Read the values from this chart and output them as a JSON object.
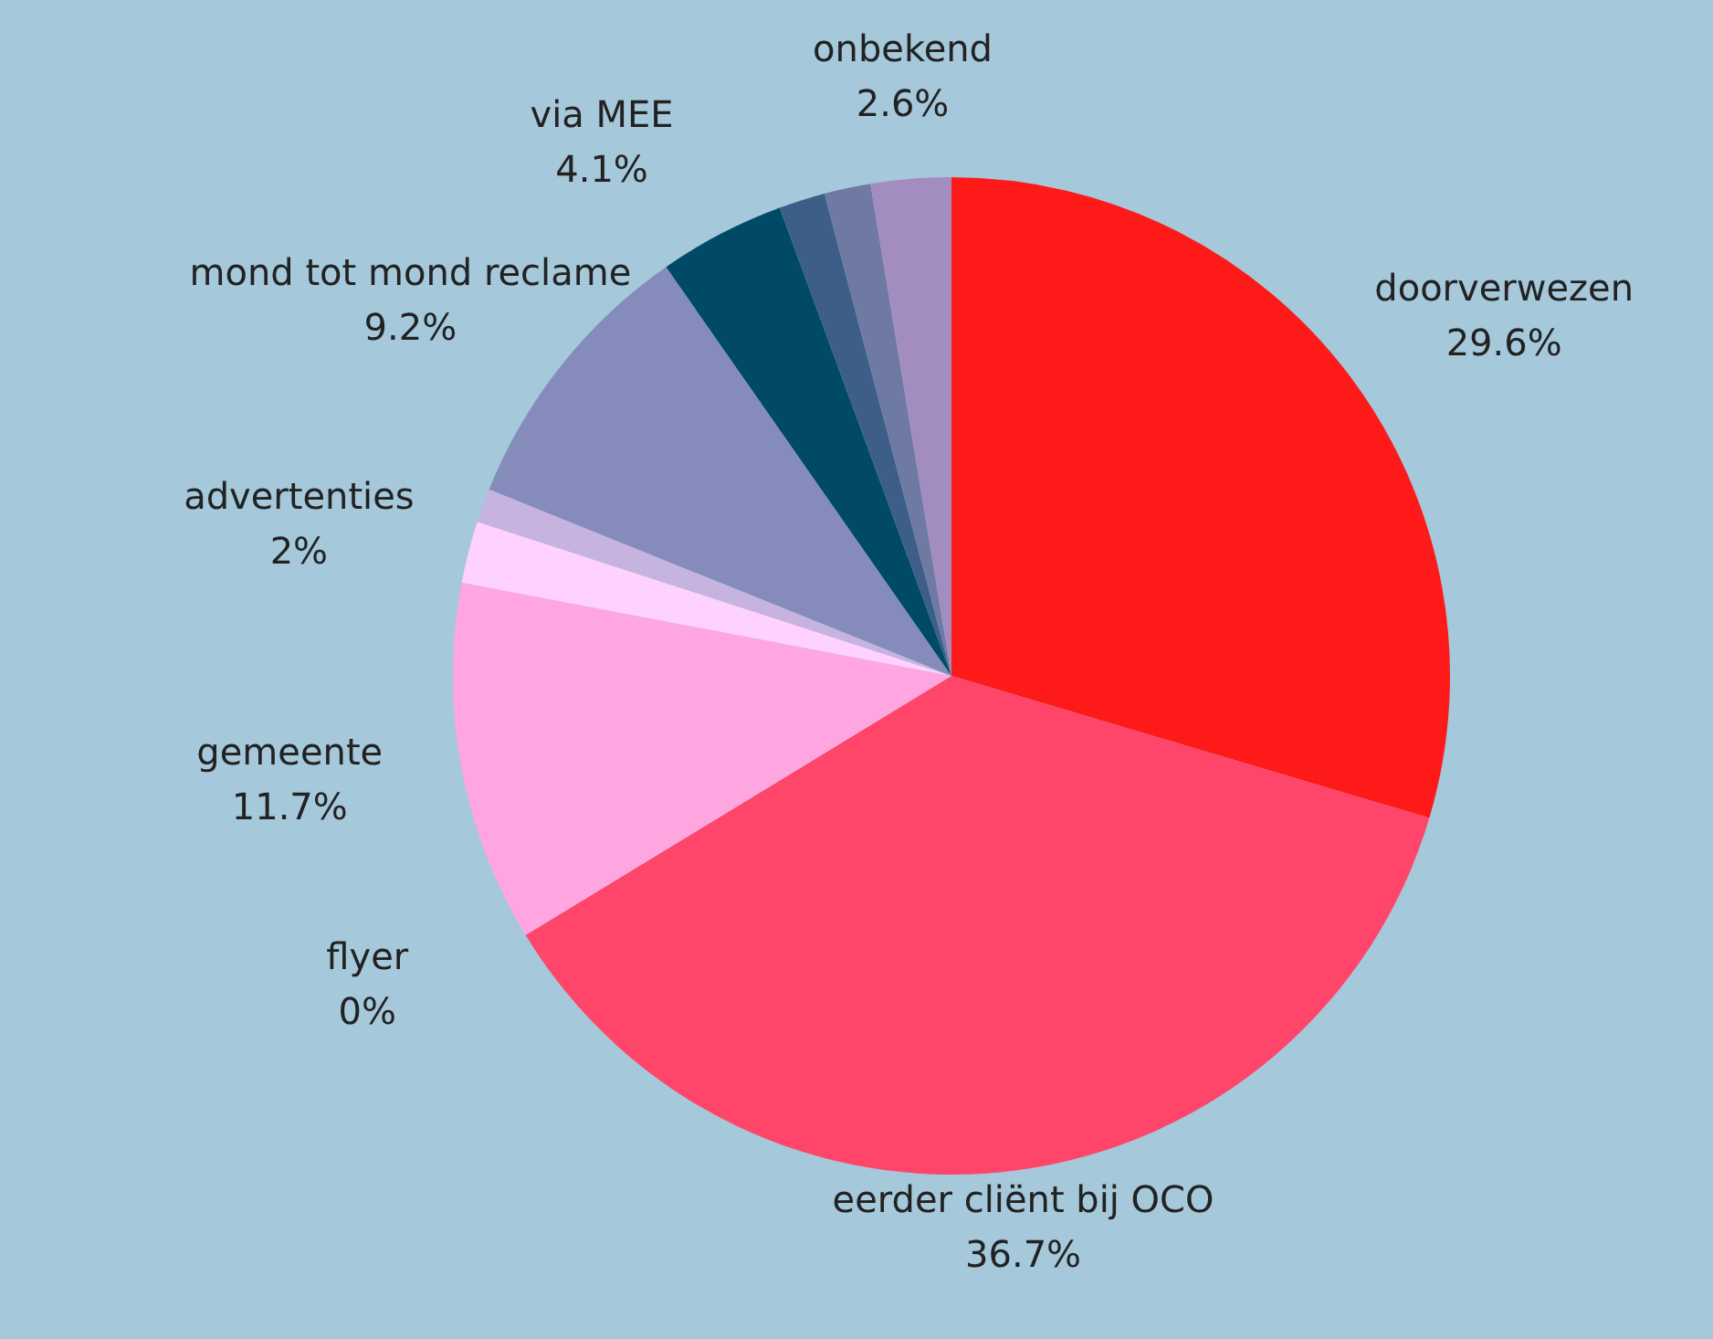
{
  "chart_data": {
    "type": "pie",
    "categories": [
      "doorverwezen",
      "eerder cliënt bij OCO",
      "flyer",
      "gemeente",
      "advertenties",
      null,
      "mond tot mond reclame",
      "via MEE",
      null,
      null,
      "onbekend"
    ],
    "values": [
      29.6,
      36.7,
      0,
      11.7,
      2,
      1.1,
      9.2,
      4.1,
      1.5,
      1.5,
      2.6
    ],
    "value_labels": [
      "29.6%",
      "36.7%",
      "0%",
      "11.7%",
      "2%",
      null,
      "9.2%",
      "4.1%",
      null,
      null,
      "2.6%"
    ],
    "colors": [
      "#ff1a1a",
      "#ff4569",
      "#ff9fd0",
      "#ffa6e0",
      "#ffd1ff",
      "#c7b3e0",
      "#858cbb",
      "#004a66",
      "#3d5e87",
      "#6e7aa3",
      "#a38cbf"
    ],
    "legend": false
  }
}
